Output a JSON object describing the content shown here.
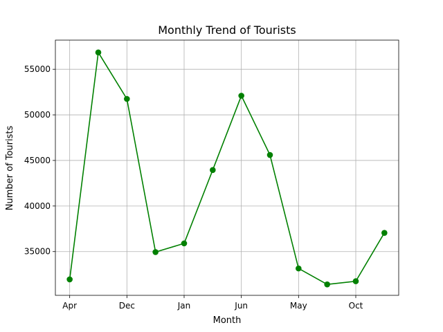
{
  "chart_data": {
    "type": "line",
    "title": "Monthly Trend of Tourists",
    "xlabel": "Month",
    "ylabel": "Number of Tourists",
    "x_tick_labels": [
      "Apr",
      "Dec",
      "Jan",
      "Jun",
      "May",
      "Oct"
    ],
    "y_tick_labels": [
      "35000",
      "40000",
      "45000",
      "50000",
      "55000"
    ],
    "y_ticks": [
      35000,
      40000,
      45000,
      50000,
      55000
    ],
    "ylim": [
      30200,
      58200
    ],
    "x_range": [
      -0.5,
      11.5
    ],
    "grid": true,
    "series": [
      {
        "values": [
          31950,
          56850,
          51750,
          34950,
          35900,
          43950,
          52100,
          45600,
          33150,
          31400,
          31750,
          37050
        ],
        "color": "#008000",
        "marker": "circle"
      }
    ]
  }
}
